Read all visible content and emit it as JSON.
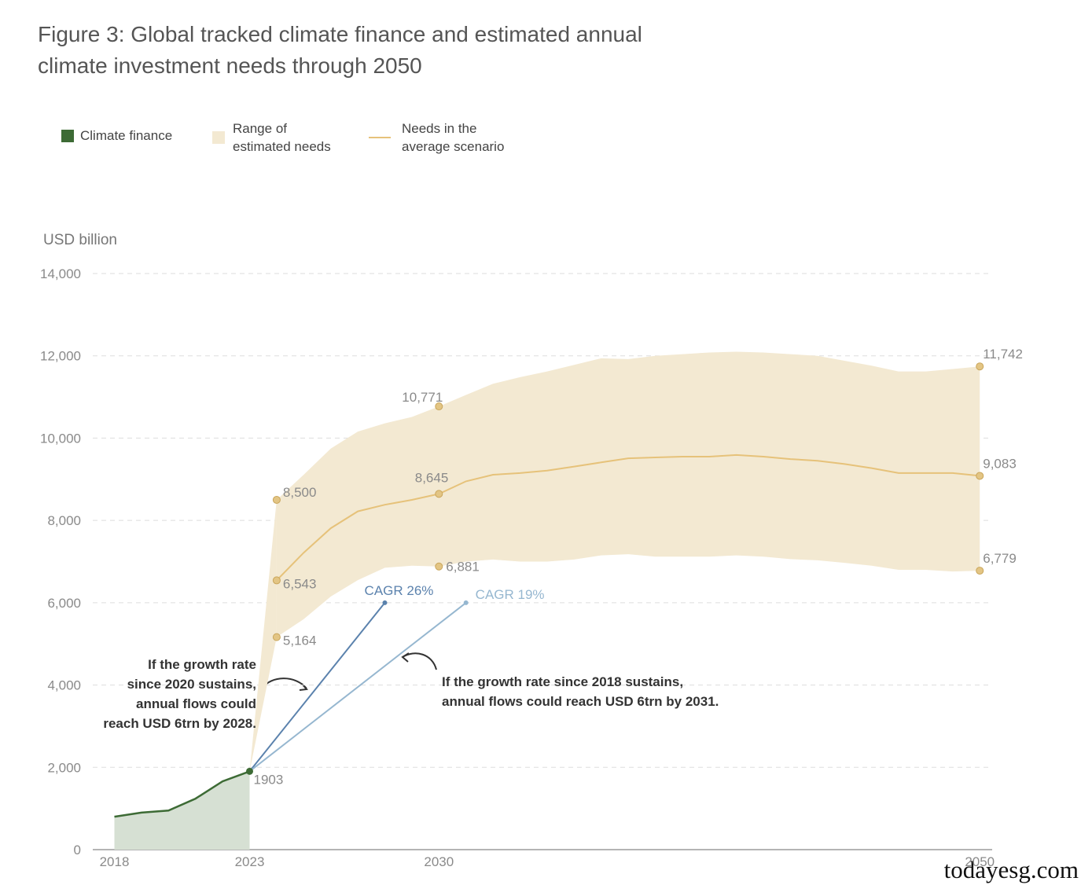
{
  "chart_data": {
    "type": "line",
    "title": "Figure 3: Global tracked climate finance and estimated annual climate investment needs through 2050",
    "y_label": "USD billion",
    "legend": "top-left",
    "grid": true,
    "xlim": [
      2017.2,
      2050.4
    ],
    "xticks": [
      2018,
      2023,
      2030,
      2050
    ],
    "ylim": [
      0,
      14000
    ],
    "yticks": [
      0,
      {
        "value": 2000,
        "label": "2,000"
      },
      {
        "value": 4000,
        "label": "4,000"
      },
      {
        "value": 6000,
        "label": "6,000"
      },
      {
        "value": 8000,
        "label": "8,000"
      },
      {
        "value": 10000,
        "label": "10,000"
      },
      {
        "value": 12000,
        "label": "12,000"
      },
      {
        "value": 14000,
        "label": "14,000"
      }
    ],
    "series": [
      {
        "name": "Climate finance",
        "kind": "area",
        "color": "#3d6b35",
        "fill": "#d6e0d3",
        "x": [
          2018,
          2019,
          2020,
          2021,
          2022,
          2023
        ],
        "values": [
          800,
          900,
          950,
          1240,
          1660,
          1903
        ],
        "value_labels": [
          null,
          null,
          null,
          null,
          null,
          "1903"
        ]
      },
      {
        "name": "Range of estimated needs",
        "kind": "band",
        "color": "#f3e9d2",
        "x": [
          2024,
          2025,
          2026,
          2027,
          2028,
          2029,
          2030,
          2031,
          2032,
          2033,
          2034,
          2035,
          2036,
          2037,
          2038,
          2039,
          2040,
          2041,
          2042,
          2043,
          2044,
          2045,
          2046,
          2047,
          2048,
          2049,
          2050
        ],
        "high_values": [
          8500,
          9110,
          9745,
          10160,
          10360,
          10515,
          10771,
          11050,
          11320,
          11480,
          11620,
          11780,
          11940,
          11920,
          12000,
          12040,
          12080,
          12100,
          12080,
          12040,
          12000,
          11880,
          11760,
          11620,
          11620,
          11680,
          11742
        ],
        "high_value_labels": [
          "8,500",
          null,
          null,
          null,
          null,
          null,
          "10,771",
          null,
          null,
          null,
          null,
          null,
          null,
          null,
          null,
          null,
          null,
          null,
          null,
          null,
          null,
          null,
          null,
          null,
          null,
          null,
          "11,742"
        ],
        "low_values": [
          5164,
          5600,
          6150,
          6550,
          6850,
          6900,
          6881,
          7000,
          7050,
          7000,
          7000,
          7050,
          7150,
          7180,
          7120,
          7120,
          7120,
          7150,
          7120,
          7060,
          7030,
          6970,
          6900,
          6800,
          6800,
          6760,
          6779
        ],
        "low_value_labels": [
          "5,164",
          null,
          null,
          null,
          null,
          null,
          "6,881",
          null,
          null,
          null,
          null,
          null,
          null,
          null,
          null,
          null,
          null,
          null,
          null,
          null,
          null,
          null,
          null,
          null,
          null,
          null,
          "6,779"
        ]
      },
      {
        "name": "Needs in the average scenario",
        "kind": "line",
        "color": "#e6c27a",
        "x": [
          2024,
          2025,
          2026,
          2027,
          2028,
          2029,
          2030,
          2031,
          2032,
          2033,
          2034,
          2035,
          2036,
          2037,
          2038,
          2039,
          2040,
          2041,
          2042,
          2043,
          2044,
          2045,
          2046,
          2047,
          2048,
          2049,
          2050
        ],
        "values": [
          6543,
          7215,
          7810,
          8220,
          8380,
          8500,
          8645,
          8950,
          9110,
          9150,
          9210,
          9310,
          9410,
          9510,
          9530,
          9550,
          9550,
          9590,
          9550,
          9490,
          9450,
          9370,
          9270,
          9150,
          9150,
          9150,
          9083
        ],
        "value_labels": [
          "6,543",
          null,
          null,
          null,
          null,
          null,
          "8,645",
          null,
          null,
          null,
          null,
          null,
          null,
          null,
          null,
          null,
          null,
          null,
          null,
          null,
          null,
          null,
          null,
          null,
          null,
          null,
          "9,083"
        ]
      }
    ],
    "projections": [
      {
        "label": "CAGR 26%",
        "color": "#5b82ad",
        "x": [
          2023,
          2028
        ],
        "values": [
          1903,
          6000
        ]
      },
      {
        "label": "CAGR 19%",
        "color": "#96b7d0",
        "x": [
          2023,
          2031
        ],
        "values": [
          1903,
          6000
        ]
      }
    ],
    "annotations": [
      {
        "lines": [
          "If the growth rate",
          "since 2020 sustains,",
          "annual flows could",
          "reach USD 6trn by 2028."
        ]
      },
      {
        "lines": [
          "If the growth rate since 2018 sustains,",
          "annual flows could reach USD 6trn by 2031."
        ]
      }
    ],
    "watermark": "todayesg.com"
  }
}
